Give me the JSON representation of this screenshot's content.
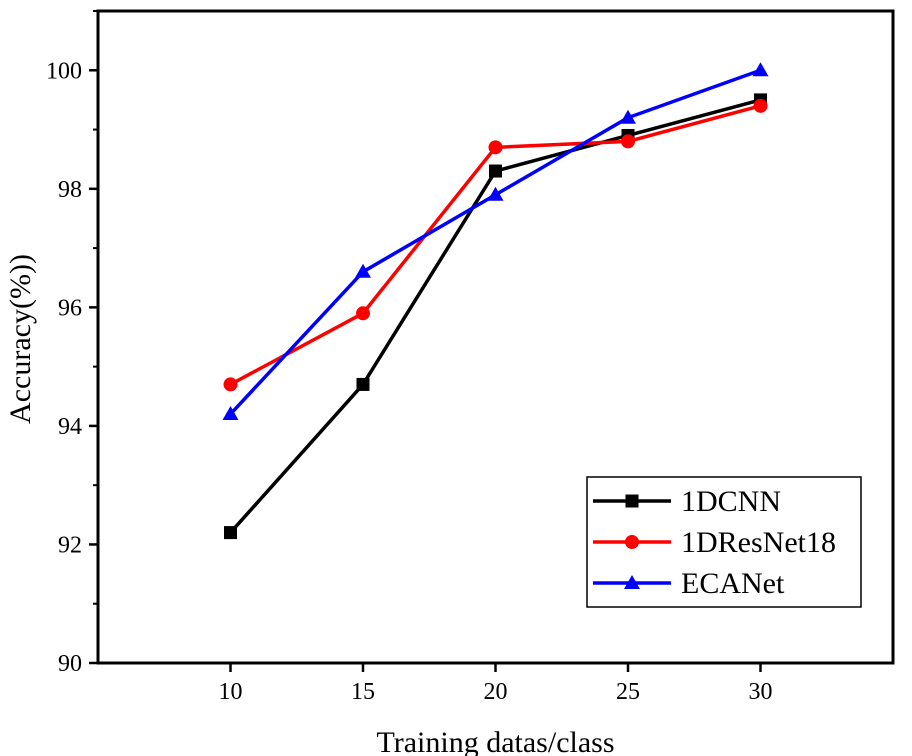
{
  "chart_data": {
    "type": "line",
    "xlabel": "Training datas/class",
    "ylabel": "Accuracy(%))",
    "x": [
      10,
      15,
      20,
      25,
      30
    ],
    "xlim": [
      5,
      35
    ],
    "ylim": [
      90,
      101
    ],
    "xticks": [
      "10",
      "15",
      "20",
      "25",
      "30"
    ],
    "yticks": [
      "90",
      "92",
      "94",
      "96",
      "98",
      "100"
    ],
    "grid": false,
    "legend_position": "bottom-right",
    "series": [
      {
        "name": "1DCNN",
        "values": [
          92.2,
          94.7,
          98.3,
          98.9,
          99.5
        ],
        "color": "#000000",
        "marker": "square"
      },
      {
        "name": "1DResNet18",
        "values": [
          94.7,
          95.9,
          98.7,
          98.8,
          99.4
        ],
        "color": "#ff0000",
        "marker": "circle"
      },
      {
        "name": "ECANet",
        "values": [
          94.2,
          96.6,
          97.9,
          99.2,
          100.0
        ],
        "color": "#0000ff",
        "marker": "triangle"
      }
    ]
  }
}
